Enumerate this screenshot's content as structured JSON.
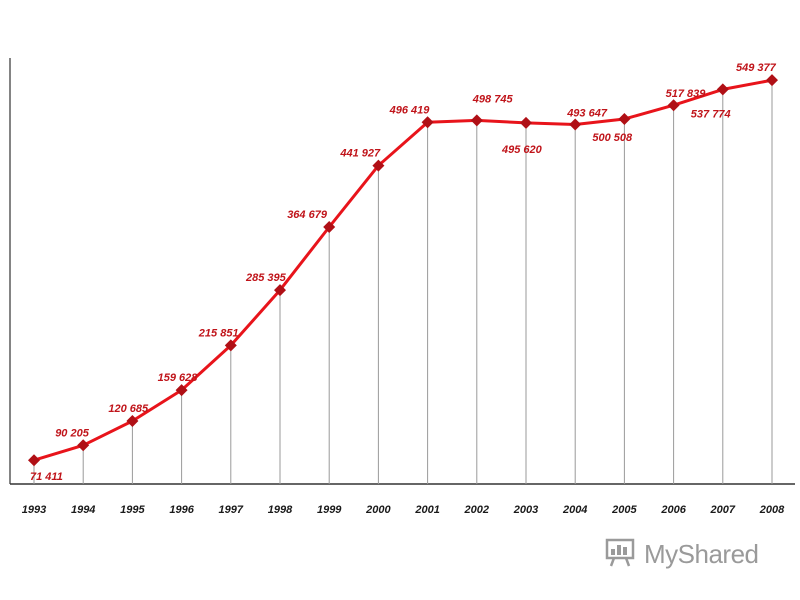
{
  "chart_data": {
    "type": "line",
    "title": "",
    "xlabel": "",
    "ylabel": "",
    "x": [
      "1993",
      "1994",
      "1995",
      "1996",
      "1997",
      "1998",
      "1999",
      "2000",
      "2001",
      "2002",
      "2003",
      "2004",
      "2005",
      "2006",
      "2007",
      "2008"
    ],
    "series": [
      {
        "values": [
          71411,
          90205,
          120685,
          159628,
          215851,
          285395,
          364679,
          441927,
          496419,
          498745,
          495620,
          493647,
          500508,
          517839,
          537774,
          549377
        ],
        "labels": [
          "71 411",
          "90 205",
          "120 685",
          "159 628",
          "215 851",
          "285 395",
          "364 679",
          "441 927",
          "496 419",
          "498 745",
          "495 620",
          "493 647",
          "500 508",
          "517 839",
          "537 774",
          "549 377"
        ],
        "color": "#e8141b",
        "marker": "diamond",
        "marker_color": "#b01016"
      }
    ],
    "ylim": [
      0,
      620000
    ],
    "grid": false,
    "drop_lines": true
  },
  "watermark": {
    "text": "MyShared",
    "icon": "presentation-board-icon"
  }
}
